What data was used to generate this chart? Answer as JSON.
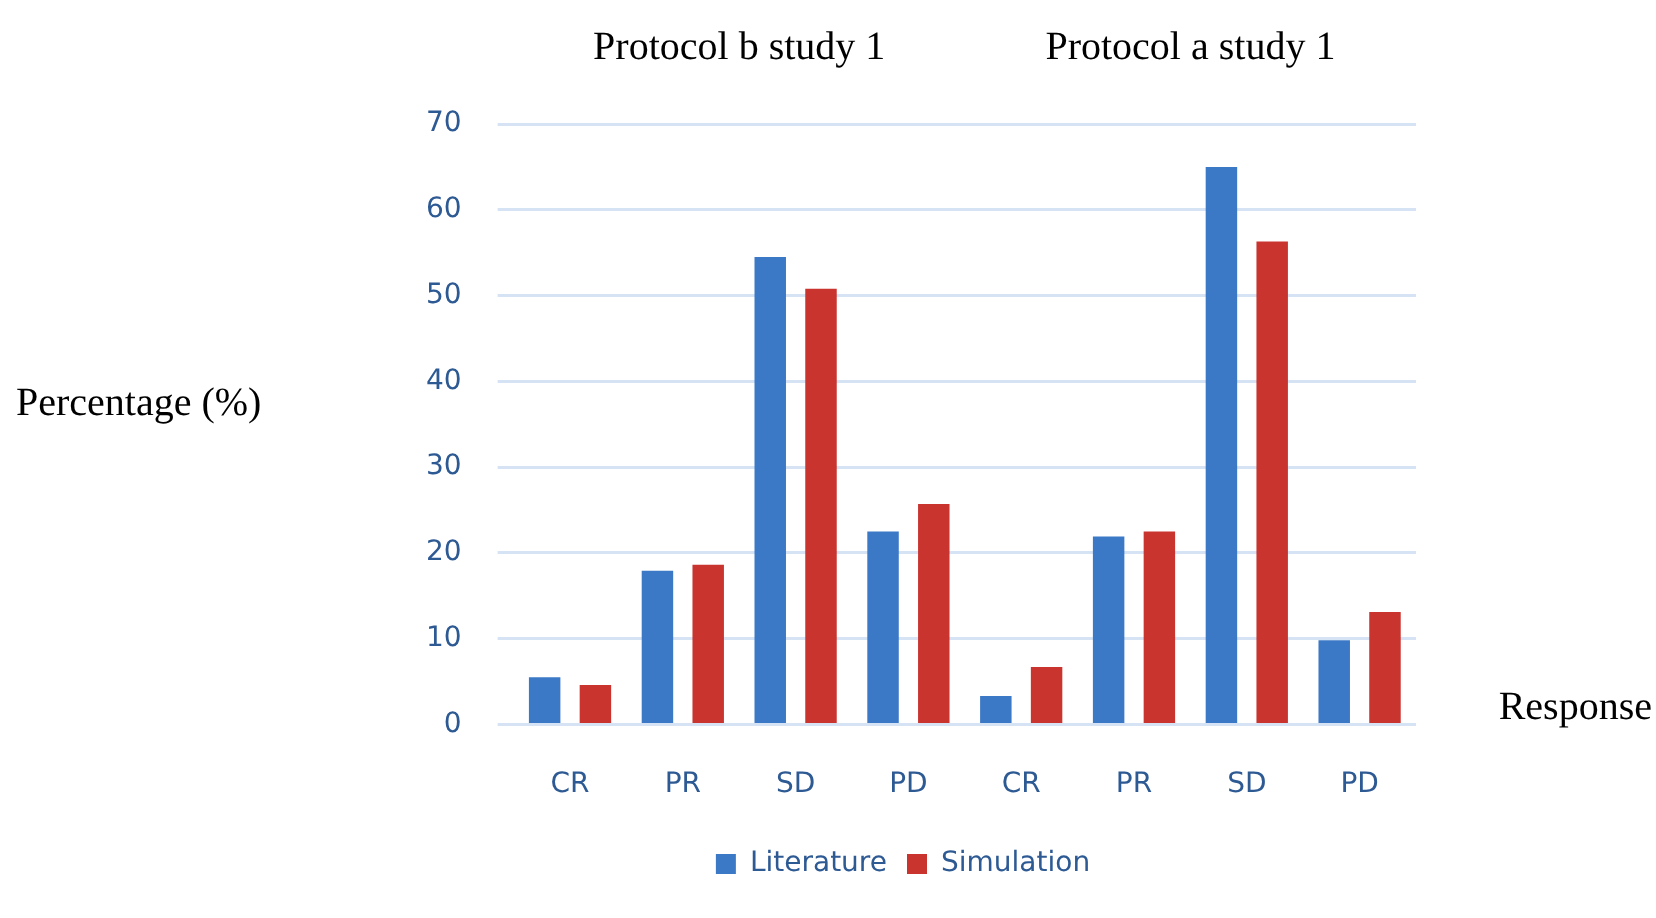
{
  "chart_data": {
    "type": "bar",
    "categories": [
      "CR",
      "PR",
      "SD",
      "PD",
      "CR",
      "PR",
      "SD",
      "PD"
    ],
    "series": [
      {
        "name": "Literature",
        "color": "#3b78c6",
        "values": [
          5.5,
          17.9,
          54.5,
          22.5,
          3.3,
          21.9,
          65,
          9.8
        ]
      },
      {
        "name": "Simulation",
        "color": "#c9342e",
        "values": [
          4.6,
          18.6,
          50.8,
          25.7,
          6.7,
          22.5,
          56.3,
          13.1
        ]
      }
    ],
    "ylabel": "Percentage (%)",
    "xlabel": "Response",
    "annotations": [
      "Protocol b study 1",
      "Protocol a study 1"
    ],
    "ylim": [
      0,
      70
    ],
    "yticks": [
      0,
      10,
      20,
      30,
      40,
      50,
      60,
      70
    ],
    "grid": "y",
    "legend": "bottom"
  }
}
